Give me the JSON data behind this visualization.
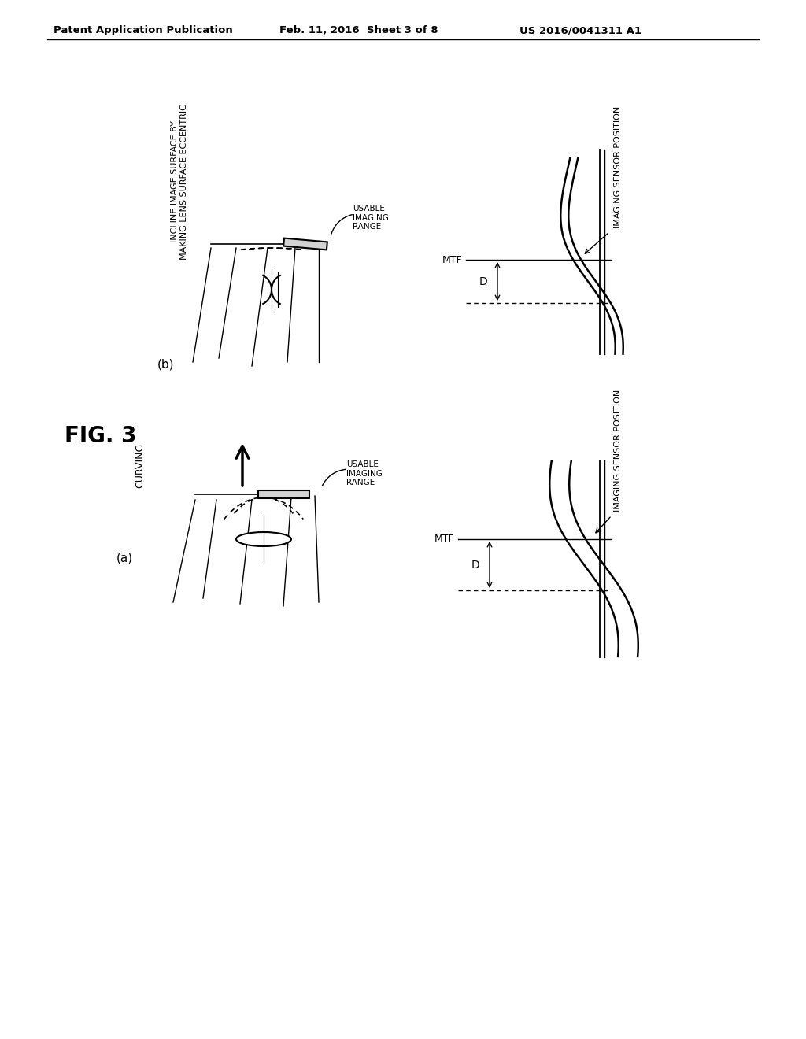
{
  "bg_color": "#ffffff",
  "header_left": "Patent Application Publication",
  "header_mid": "Feb. 11, 2016  Sheet 3 of 8",
  "header_right": "US 2016/0041311 A1",
  "fig_label": "FIG. 3",
  "label_a": "(a)",
  "label_b": "(b)",
  "curving_label": "CURVING",
  "incline_label": "INCLINE IMAGE SURFACE BY\nMAKING LENS SURFACE ECCENTRIC",
  "usable_imaging_range": "USABLE\nIMAGING\nRANGE",
  "mtf_label": "MTF",
  "d_label": "D",
  "imaging_sensor_label": "IMAGING SENSOR POSITION"
}
